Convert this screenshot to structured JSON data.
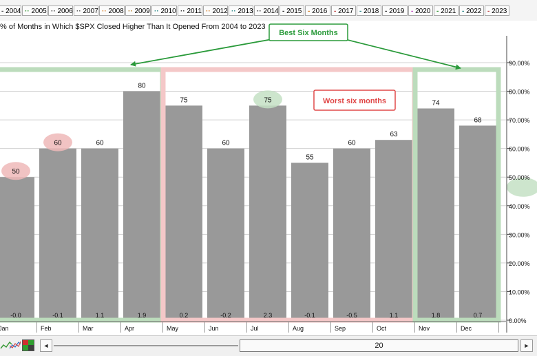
{
  "legend": {
    "items": [
      {
        "label": "2004",
        "glyph": "-",
        "color": "#555555"
      },
      {
        "label": "2005",
        "glyph": "··",
        "color": "#3a9a3a"
      },
      {
        "label": "2006",
        "glyph": "··",
        "color": "#333333"
      },
      {
        "label": "2007",
        "glyph": "··",
        "color": "#555555"
      },
      {
        "label": "2008",
        "glyph": "··",
        "color": "#d9822b"
      },
      {
        "label": "2009",
        "glyph": "··",
        "color": "#b07a1e"
      },
      {
        "label": "2010",
        "glyph": "··",
        "color": "#2e8b8b"
      },
      {
        "label": "2011",
        "glyph": "··",
        "color": "#333333"
      },
      {
        "label": "2012",
        "glyph": "··",
        "color": "#d9822b"
      },
      {
        "label": "2013",
        "glyph": "··",
        "color": "#2e8b8b"
      },
      {
        "label": "2014",
        "glyph": "··",
        "color": "#333333"
      },
      {
        "label": "2015",
        "glyph": "-",
        "color": "#333333"
      },
      {
        "label": "2016",
        "glyph": "-",
        "color": "#d9822b"
      },
      {
        "label": "2017",
        "glyph": "-",
        "color": "#c44a4a"
      },
      {
        "label": "2018",
        "glyph": "-",
        "color": "#2e8b8b"
      },
      {
        "label": "2019",
        "glyph": "-",
        "color": "#333333"
      },
      {
        "label": "2020",
        "glyph": "-",
        "color": "#c44ac4"
      },
      {
        "label": "2021",
        "glyph": "-",
        "color": "#3a9a3a"
      },
      {
        "label": "2022",
        "glyph": "-",
        "color": "#2e8b8b"
      },
      {
        "label": "2023",
        "glyph": "-",
        "color": "#c44a4a"
      }
    ]
  },
  "annotations": {
    "best": "Best Six Months",
    "worst": "Worst six months"
  },
  "scrollbar": {
    "thumb_label": "20",
    "left_arrow": "◄",
    "right_arrow": "►"
  },
  "toolbar": {
    "icons": [
      "line-chart-icon",
      "multi-line-chart-icon",
      "color-picker-icon"
    ]
  },
  "colors": {
    "bar": "#999999",
    "best_box": "#bcdcbc",
    "worst_box": "#f4c8c8",
    "best_text": "#2a9a3a",
    "worst_text": "#e04848",
    "highlight_red": "#eeb8b8",
    "highlight_green": "#c4e0c4"
  },
  "chart_data": {
    "type": "bar",
    "title": "% of Months in Which $SPX Closed Higher Than It Opened From 2004 to 2023",
    "categories": [
      "Jan",
      "Feb",
      "Mar",
      "Apr",
      "May",
      "Jun",
      "Jul",
      "Aug",
      "Sep",
      "Oct",
      "Nov",
      "Dec"
    ],
    "values": [
      50,
      60,
      60,
      80,
      75,
      60,
      75,
      55,
      60,
      63,
      74,
      68
    ],
    "value_labels": [
      "50",
      "60",
      "60",
      "80",
      "75",
      "60",
      "75",
      "55",
      "60",
      "63",
      "74",
      "68"
    ],
    "bottom_labels": [
      "-0.0",
      "-0.1",
      "1.1",
      "1.9",
      "0.2",
      "-0.2",
      "2.3",
      "-0.1",
      "-0.5",
      "1.1",
      "1.8",
      "0.7"
    ],
    "ylim": [
      0,
      90
    ],
    "yticks": [
      0,
      10,
      20,
      30,
      40,
      50,
      60,
      70,
      80,
      90
    ],
    "ytick_labels": [
      "0.00%",
      "10.00%",
      "20.00%",
      "30.00%",
      "40.00%",
      "50.00%",
      "60.00%",
      "70.00%",
      "80.00%",
      "90.00%"
    ],
    "grid": true,
    "highlighted_red": [
      "Jan",
      "Feb"
    ],
    "highlighted_green": [
      "Jul"
    ]
  }
}
